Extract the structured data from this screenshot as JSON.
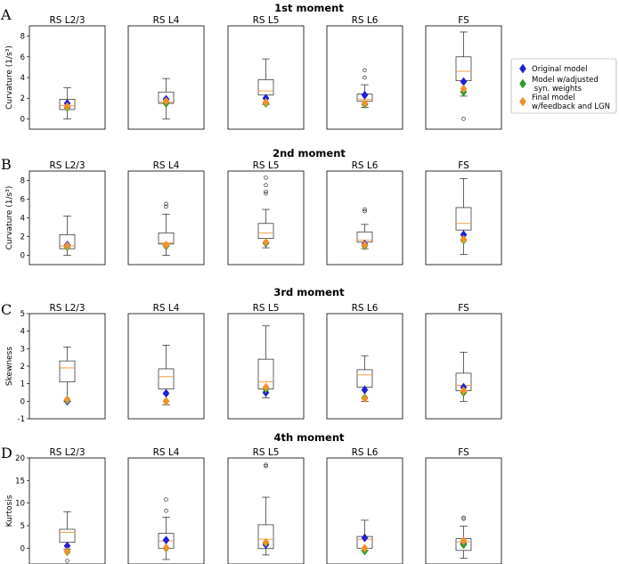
{
  "figure": {
    "legend": [
      {
        "label": "Original model",
        "color": "#1f1fd6"
      },
      {
        "label": "Model w/adjusted syn. weights",
        "color": "#2a9a2a"
      },
      {
        "label": "Final model w/feedback and LGN",
        "color": "#f0922a"
      }
    ]
  },
  "chart_data": [
    {
      "type": "boxplot",
      "letter": "A",
      "title": "1st moment",
      "ylabel": "Curvature (1/s³)",
      "ylim": [
        -1,
        9
      ],
      "yticks": [
        0,
        2,
        4,
        6,
        8
      ],
      "panels": [
        {
          "label": "RS L2/3",
          "box": {
            "whislo": 0.0,
            "q1": 0.9,
            "med": 1.3,
            "q3": 1.9,
            "whishi": 3.0
          },
          "outliers": [],
          "points": {
            "original": 1.5,
            "adjusted": 1.1,
            "final": 1.2
          }
        },
        {
          "label": "RS L4",
          "box": {
            "whislo": 0.0,
            "q1": 1.5,
            "med": 1.6,
            "q3": 2.6,
            "whishi": 3.9
          },
          "outliers": [],
          "points": {
            "original": 1.9,
            "adjusted": 1.5,
            "final": 1.7
          }
        },
        {
          "label": "RS L5",
          "box": {
            "whislo": 1.4,
            "q1": 2.3,
            "med": 2.7,
            "q3": 3.8,
            "whishi": 5.8
          },
          "outliers": [],
          "points": {
            "original": 2.0,
            "adjusted": 1.5,
            "final": 1.6
          }
        },
        {
          "label": "RS L6",
          "box": {
            "whislo": 1.1,
            "q1": 1.7,
            "med": 1.9,
            "q3": 2.4,
            "whishi": 3.3
          },
          "outliers": [
            4.0,
            4.7
          ],
          "points": {
            "original": 2.3,
            "adjusted": 1.4,
            "final": 1.5
          }
        },
        {
          "label": "FS",
          "box": {
            "whislo": 2.2,
            "q1": 3.7,
            "med": 4.6,
            "q3": 6.0,
            "whishi": 8.4
          },
          "outliers": [
            0.0
          ],
          "points": {
            "original": 3.6,
            "adjusted": 2.6,
            "final": 2.9
          }
        }
      ]
    },
    {
      "type": "boxplot",
      "letter": "B",
      "title": "2nd moment",
      "ylabel": "Curvature (1/s³)",
      "ylim": [
        -1,
        9
      ],
      "yticks": [
        0,
        2,
        4,
        6,
        8
      ],
      "panels": [
        {
          "label": "RS L2/3",
          "box": {
            "whislo": 0.0,
            "q1": 0.7,
            "med": 1.0,
            "q3": 2.2,
            "whishi": 4.2
          },
          "outliers": [],
          "points": {
            "original": 1.1,
            "adjusted": 0.9,
            "final": 1.0
          }
        },
        {
          "label": "RS L4",
          "box": {
            "whislo": 0.0,
            "q1": 1.2,
            "med": 1.3,
            "q3": 2.4,
            "whishi": 4.4
          },
          "outliers": [
            5.2,
            5.5
          ],
          "points": {
            "original": 1.0,
            "adjusted": 1.0,
            "final": 1.1
          }
        },
        {
          "label": "RS L5",
          "box": {
            "whislo": 0.8,
            "q1": 1.8,
            "med": 2.4,
            "q3": 3.4,
            "whishi": 4.9
          },
          "outliers": [
            6.6,
            6.8,
            7.5,
            8.3
          ],
          "points": {
            "original": 1.3,
            "adjusted": 1.3,
            "final": 1.4
          }
        },
        {
          "label": "RS L6",
          "box": {
            "whislo": 0.7,
            "q1": 1.4,
            "med": 1.6,
            "q3": 2.5,
            "whishi": 3.3
          },
          "outliers": [
            4.7,
            4.9
          ],
          "points": {
            "original": 1.2,
            "adjusted": 1.0,
            "final": 1.1
          }
        },
        {
          "label": "FS",
          "box": {
            "whislo": 0.1,
            "q1": 2.7,
            "med": 3.4,
            "q3": 5.1,
            "whishi": 8.2
          },
          "outliers": [],
          "points": {
            "original": 2.2,
            "adjusted": 1.6,
            "final": 1.7
          }
        }
      ]
    },
    {
      "type": "boxplot",
      "letter": "C",
      "title": "3rd moment",
      "ylabel": "Skewness",
      "ylim": [
        -1,
        5
      ],
      "yticks": [
        -1,
        0,
        1,
        2,
        3,
        4,
        5
      ],
      "panels": [
        {
          "label": "RS L2/3",
          "box": {
            "whislo": 0.0,
            "q1": 1.1,
            "med": 1.9,
            "q3": 2.3,
            "whishi": 3.1
          },
          "outliers": [],
          "points": {
            "original": 0.0,
            "adjusted": 0.05,
            "final": 0.1
          }
        },
        {
          "label": "RS L4",
          "box": {
            "whislo": -0.2,
            "q1": 0.7,
            "med": 1.4,
            "q3": 1.85,
            "whishi": 3.2
          },
          "outliers": [],
          "points": {
            "original": 0.45,
            "adjusted": 0.0,
            "final": 0.0
          }
        },
        {
          "label": "RS L5",
          "box": {
            "whislo": 0.2,
            "q1": 0.7,
            "med": 1.1,
            "q3": 2.4,
            "whishi": 4.3
          },
          "outliers": [],
          "points": {
            "original": 0.5,
            "adjusted": 0.7,
            "final": 0.8
          }
        },
        {
          "label": "RS L6",
          "box": {
            "whislo": 0.0,
            "q1": 0.8,
            "med": 1.5,
            "q3": 1.8,
            "whishi": 2.6
          },
          "outliers": [],
          "points": {
            "original": 0.65,
            "adjusted": 0.2,
            "final": 0.15
          }
        },
        {
          "label": "FS",
          "box": {
            "whislo": 0.0,
            "q1": 0.6,
            "med": 0.9,
            "q3": 1.6,
            "whishi": 2.8
          },
          "outliers": [],
          "points": {
            "original": 0.8,
            "adjusted": 0.5,
            "final": 0.6
          }
        }
      ]
    },
    {
      "type": "boxplot",
      "letter": "D",
      "title": "4th moment",
      "ylabel": "Kurtosis",
      "ylim": [
        -3.5,
        20
      ],
      "yticks": [
        0,
        5,
        10,
        15,
        20
      ],
      "panels": [
        {
          "label": "RS L2/3",
          "box": {
            "whislo": -0.2,
            "q1": 1.3,
            "med": 3.5,
            "q3": 4.2,
            "whishi": 8.1
          },
          "outliers": [
            -2.8
          ],
          "points": {
            "original": 0.5,
            "adjusted": -0.8,
            "final": -0.7
          }
        },
        {
          "label": "RS L4",
          "box": {
            "whislo": -2.5,
            "q1": 0.0,
            "med": 1.6,
            "q3": 3.3,
            "whishi": 6.9
          },
          "outliers": [
            8.3,
            10.8
          ],
          "points": {
            "original": 1.8,
            "adjusted": 0.0,
            "final": 0.1
          }
        },
        {
          "label": "RS L5",
          "box": {
            "whislo": -1.5,
            "q1": -0.1,
            "med": 2.0,
            "q3": 5.2,
            "whishi": 11.3
          },
          "outliers": [
            18.2,
            18.5
          ],
          "points": {
            "original": 0.8,
            "adjusted": 1.2,
            "final": 1.3
          }
        },
        {
          "label": "RS L6",
          "box": {
            "whislo": -0.5,
            "q1": 0.0,
            "med": 2.0,
            "q3": 2.6,
            "whishi": 6.2
          },
          "outliers": [],
          "points": {
            "original": 2.3,
            "adjusted": -0.6,
            "final": 0.0
          }
        },
        {
          "label": "FS",
          "box": {
            "whislo": -2.2,
            "q1": -0.5,
            "med": 1.4,
            "q3": 2.1,
            "whishi": 4.9
          },
          "outliers": [
            6.5,
            6.8
          ],
          "points": {
            "original": 1.0,
            "adjusted": 0.8,
            "final": 1.6
          }
        }
      ]
    }
  ]
}
